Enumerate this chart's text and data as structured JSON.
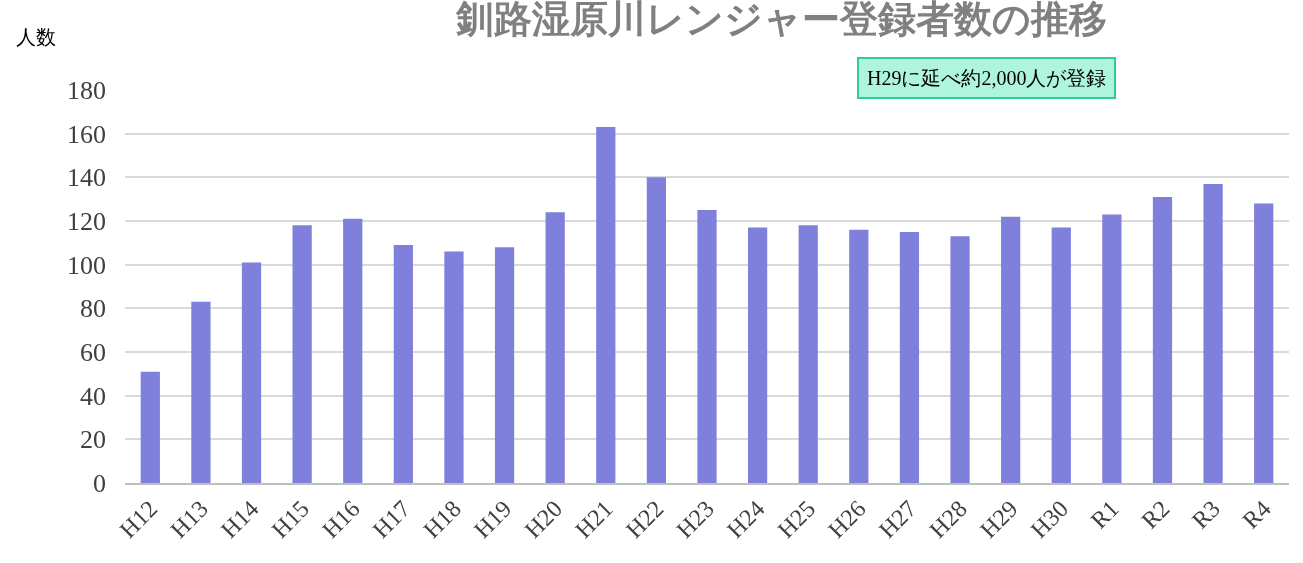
{
  "chart_data": {
    "type": "bar",
    "title": "釧路湿原川レンジャー登録者数の推移",
    "ylabel": "人数",
    "annotations": [
      "H29に延べ約2,000人が登録"
    ],
    "categories": [
      "H12",
      "H13",
      "H14",
      "H15",
      "H16",
      "H17",
      "H18",
      "H19",
      "H20",
      "H21",
      "H22",
      "H23",
      "H24",
      "H25",
      "H26",
      "H27",
      "H28",
      "H29",
      "H30",
      "R1",
      "R2",
      "R3",
      "R4"
    ],
    "values": [
      51,
      83,
      101,
      118,
      121,
      109,
      106,
      108,
      124,
      163,
      140,
      125,
      117,
      118,
      116,
      115,
      113,
      122,
      117,
      123,
      131,
      137,
      128
    ],
    "color": "#7f7fdc",
    "ylim": [
      0,
      180
    ],
    "yticks": [
      0,
      20,
      40,
      60,
      80,
      100,
      120,
      140,
      160,
      180
    ],
    "grid": "y"
  }
}
